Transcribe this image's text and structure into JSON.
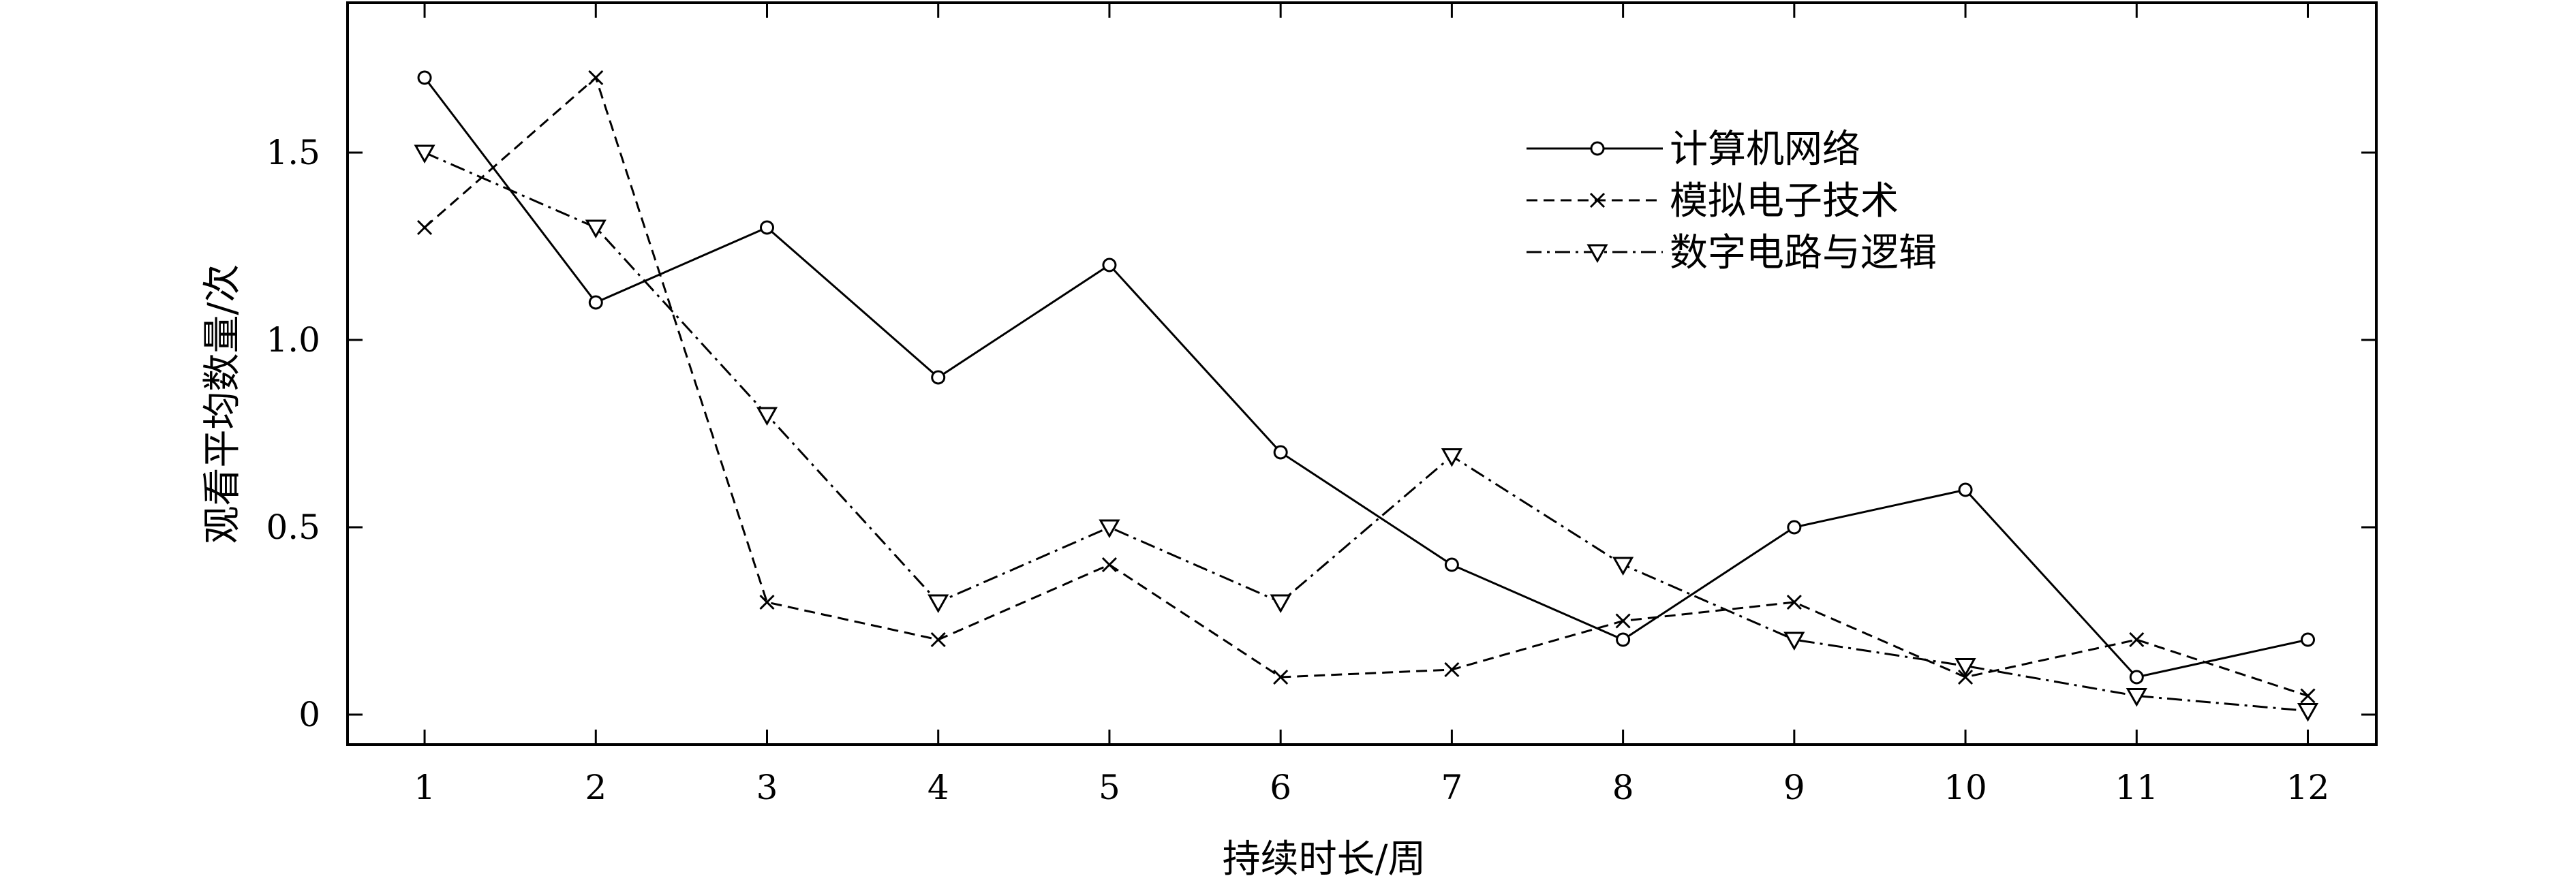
{
  "chart_data": {
    "type": "line",
    "x": [
      1,
      2,
      3,
      4,
      5,
      6,
      7,
      8,
      9,
      10,
      11,
      12
    ],
    "xlabel": "持续时长/周",
    "ylabel": "观看平均数量/次",
    "xlim": [
      0.55,
      12.4
    ],
    "ylim": [
      -0.08,
      1.9
    ],
    "x_ticks": [
      "1",
      "2",
      "3",
      "4",
      "5",
      "6",
      "7",
      "8",
      "9",
      "10",
      "11",
      "12"
    ],
    "y_ticks": [
      {
        "value": 0,
        "label": "0"
      },
      {
        "value": 0.5,
        "label": "0.5"
      },
      {
        "value": 1.0,
        "label": "1.0"
      },
      {
        "value": 1.5,
        "label": "1.5"
      }
    ],
    "grid": false,
    "legend_position": "top-right",
    "series": [
      {
        "name": "计算机网络",
        "line_style": "solid",
        "marker": "circle",
        "values": [
          1.7,
          1.1,
          1.3,
          0.9,
          1.2,
          0.7,
          0.4,
          0.2,
          0.5,
          0.6,
          0.1,
          0.2
        ]
      },
      {
        "name": "模拟电子技术",
        "line_style": "dashed",
        "marker": "x",
        "values": [
          1.3,
          1.7,
          0.3,
          0.2,
          0.4,
          0.1,
          0.12,
          0.25,
          0.3,
          0.1,
          0.2,
          0.05
        ]
      },
      {
        "name": "数字电路与逻辑",
        "line_style": "dashdot",
        "marker": "triangle-down",
        "values": [
          1.5,
          1.3,
          0.8,
          0.3,
          0.5,
          0.3,
          0.69,
          0.4,
          0.2,
          0.13,
          0.05,
          0.01
        ]
      }
    ],
    "colors": {
      "line": "#000000",
      "background": "#ffffff"
    }
  }
}
